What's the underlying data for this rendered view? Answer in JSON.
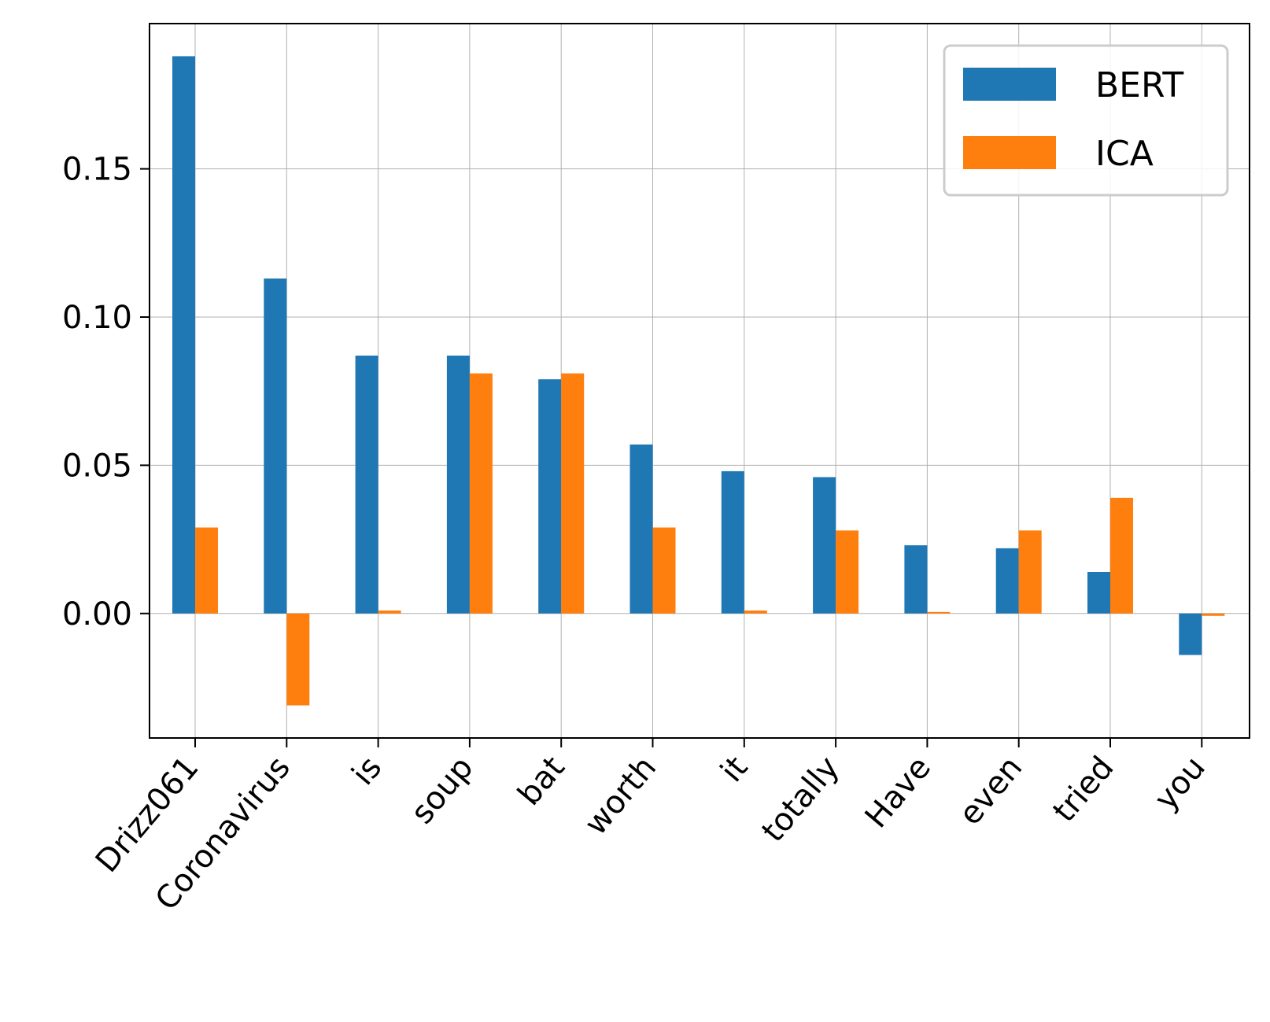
{
  "chart_data": {
    "type": "bar",
    "title": "",
    "xlabel": "",
    "ylabel": "",
    "categories": [
      "Drizz061",
      "Coronavirus",
      "is",
      "soup",
      "bat",
      "worth",
      "it",
      "totally",
      "Have",
      "even",
      "tried",
      "you"
    ],
    "series": [
      {
        "name": "BERT",
        "color": "#1f77b4",
        "values": [
          0.188,
          0.113,
          0.087,
          0.087,
          0.079,
          0.057,
          0.048,
          0.046,
          0.023,
          0.022,
          0.014,
          -0.014
        ]
      },
      {
        "name": "ICA",
        "color": "#ff7f0e",
        "values": [
          0.029,
          -0.031,
          0.001,
          0.081,
          0.081,
          0.029,
          0.001,
          0.028,
          0.0005,
          0.028,
          0.039,
          -0.0008
        ]
      }
    ],
    "ylim": [
      -0.042,
      0.199
    ],
    "yticks": [
      "0.00",
      "0.05",
      "0.10",
      "0.15"
    ],
    "ytick_values": [
      0.0,
      0.05,
      0.1,
      0.15
    ],
    "grid": true,
    "legend_position": "top-right"
  }
}
